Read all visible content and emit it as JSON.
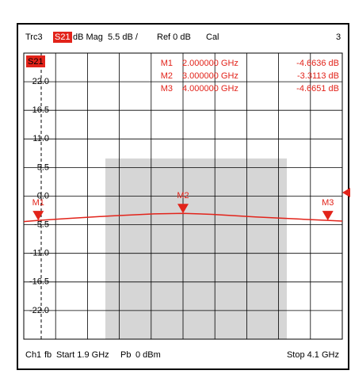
{
  "chart_data": {
    "type": "line",
    "header": [
      "Trc3",
      "S21",
      "dB Mag",
      "5.5 dB /",
      "Ref 0 dB",
      "Cal",
      "3"
    ],
    "trace_label": "S21",
    "x": [
      1.9,
      2.0,
      2.2,
      2.5,
      2.8,
      3.0,
      3.2,
      3.5,
      3.8,
      4.0,
      4.1
    ],
    "values": [
      -4.9,
      -4.66,
      -4.3,
      -3.8,
      -3.4,
      -3.31,
      -3.5,
      -4.0,
      -4.4,
      -4.67,
      -4.8
    ],
    "color": "#e2231a",
    "xlim": [
      1.9,
      4.1
    ],
    "ylim": [
      -27.5,
      27.5
    ],
    "yticks": [
      {
        "value": -22,
        "label": "-22.0"
      },
      {
        "value": -16.5,
        "label": "-16.5"
      },
      {
        "value": -11,
        "label": "-11.0"
      },
      -5.5,
      {
        "value": 0,
        "label": "0.0"
      },
      5.5,
      {
        "value": 11,
        "label": "11.0"
      },
      16.5,
      {
        "value": 22,
        "label": "22.0"
      }
    ],
    "grid": true,
    "markers": [
      {
        "name": "M1",
        "x": 2.0,
        "x_label": "2.000000 GHz",
        "value": -4.6636,
        "value_label": "-4.6636 dB"
      },
      {
        "name": "M2",
        "x": 3.0,
        "x_label": "3.000000 GHz",
        "value": -3.3113,
        "value_label": "-3.3113 dB"
      },
      {
        "name": "M3",
        "x": 4.0,
        "x_label": "4.000000 GHz",
        "value": -4.6651,
        "value_label": "-4.6651 dB"
      }
    ],
    "footer": [
      "Ch1",
      "fb",
      "Start 1.9 GHz",
      "Pb",
      "0 dBm",
      "Stop 4.1 GHz"
    ]
  }
}
